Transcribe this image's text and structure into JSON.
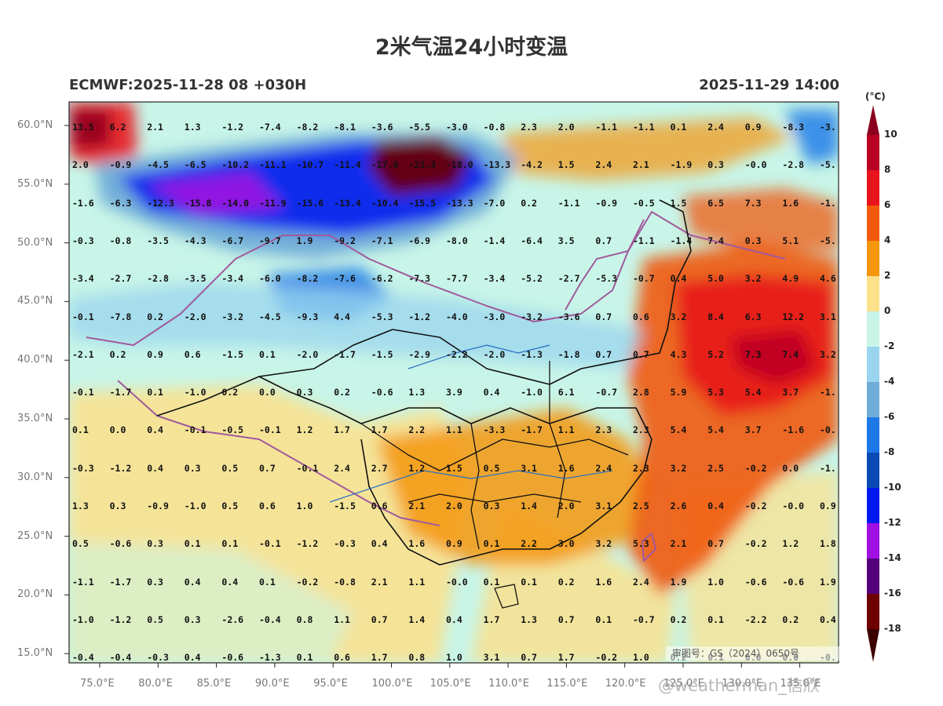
{
  "title": "2米气温24小时变温",
  "run_label": "ECMWF:2025-11-28 08 +030H",
  "valid_time": "2025-11-29 14:00",
  "colorbar": {
    "unit": "(°C)",
    "ticks": [
      "10",
      "8",
      "6",
      "4",
      "2",
      "0",
      "-2",
      "-4",
      "-6",
      "-8",
      "-10",
      "-12",
      "-14",
      "-16",
      "-18"
    ],
    "colors": [
      "#8b0020",
      "#b80024",
      "#e8141c",
      "#f05a0a",
      "#f5960f",
      "#fde08a",
      "#c8f5e8",
      "#9ad4ee",
      "#70acd8",
      "#1d78e8",
      "#0a4ab4",
      "#0018f0",
      "#a010e0",
      "#54007a",
      "#6e0000",
      "#3c0000"
    ]
  },
  "map": {
    "lat_labels": [
      "60.0°N",
      "55.0°N",
      "50.0°N",
      "45.0°N",
      "40.0°N",
      "35.0°N",
      "30.0°N",
      "25.0°N",
      "20.0°N",
      "15.0°N"
    ],
    "lon_labels": [
      "75.0°E",
      "80.0°E",
      "85.0°E",
      "90.0°E",
      "95.0°E",
      "100.0°E",
      "105.0°E",
      "110.0°E",
      "115.0°E",
      "120.0°E",
      "125.0°E",
      "130.0°E",
      "135.0°E"
    ],
    "grid_values": [
      [
        "13.5",
        "6.2",
        "2.1",
        "1.3",
        "-1.2",
        "-7.4",
        "-8.2",
        "-8.1",
        "-3.6",
        "-5.5",
        "-3.0",
        "-0.8",
        "2.3",
        "2.0",
        "-1.1",
        "-1.1",
        "0.1",
        "2.4",
        "0.9",
        "-8.3",
        "-3."
      ],
      [
        "2.0",
        "-0.9",
        "-4.5",
        "-6.5",
        "-10.2",
        "-11.1",
        "-10.7",
        "-11.4",
        "-17.8",
        "-23.3",
        "-18.0",
        "-13.3",
        "-4.2",
        "1.5",
        "2.4",
        "2.1",
        "-1.9",
        "0.3",
        "-0.0",
        "-2.8",
        "-5."
      ],
      [
        "-1.6",
        "-6.3",
        "-12.3",
        "-15.8",
        "-14.0",
        "-11.9",
        "-15.6",
        "-13.4",
        "-10.4",
        "-15.5",
        "-13.3",
        "-7.0",
        "0.2",
        "-1.1",
        "-0.9",
        "-0.5",
        "1.5",
        "6.5",
        "7.3",
        "1.6",
        "-1."
      ],
      [
        "-0.3",
        "-0.8",
        "-3.5",
        "-4.3",
        "-6.7",
        "-9.7",
        "1.9",
        "-9.2",
        "-7.1",
        "-6.9",
        "-8.0",
        "-1.4",
        "-6.4",
        "3.5",
        "0.7",
        "-1.1",
        "-1.4",
        "7.4",
        "0.3",
        "5.1",
        "-5."
      ],
      [
        "-3.4",
        "-2.7",
        "-2.8",
        "-3.5",
        "-3.4",
        "-6.0",
        "-8.2",
        "-7.6",
        "-6.2",
        "-7.3",
        "-7.7",
        "-3.4",
        "-5.2",
        "-2.7",
        "-5.3",
        "-0.7",
        "0.4",
        "5.0",
        "3.2",
        "4.9",
        "4.6"
      ],
      [
        "-0.1",
        "-7.8",
        "0.2",
        "-2.0",
        "-3.2",
        "-4.5",
        "-9.3",
        "4.4",
        "-5.3",
        "-1.2",
        "-4.0",
        "-3.0",
        "-3.2",
        "-3.6",
        "0.7",
        "0.6",
        "3.2",
        "8.4",
        "6.3",
        "12.2",
        "3.1"
      ],
      [
        "-2.1",
        "0.2",
        "0.9",
        "0.6",
        "-1.5",
        "0.1",
        "-2.0",
        "-1.7",
        "-1.5",
        "-2.9",
        "-2.2",
        "-2.0",
        "-1.3",
        "-1.8",
        "0.7",
        "0.7",
        "4.3",
        "5.2",
        "7.3",
        "7.4",
        "3.2"
      ],
      [
        "-0.1",
        "-1.7",
        "0.1",
        "-1.0",
        "0.2",
        "0.0",
        "0.3",
        "0.2",
        "-0.6",
        "1.3",
        "3.9",
        "0.4",
        "-1.0",
        "6.1",
        "-0.7",
        "2.8",
        "5.9",
        "5.3",
        "5.4",
        "3.7",
        "-1."
      ],
      [
        "0.1",
        "0.0",
        "0.4",
        "-0.1",
        "-0.5",
        "-0.1",
        "1.2",
        "1.7",
        "1.7",
        "2.2",
        "1.1",
        "-3.3",
        "-1.7",
        "1.1",
        "2.3",
        "2.3",
        "5.4",
        "5.4",
        "3.7",
        "-1.6",
        "-0."
      ],
      [
        "-0.3",
        "-1.2",
        "0.4",
        "0.3",
        "0.5",
        "0.7",
        "-0.1",
        "2.4",
        "2.7",
        "1.2",
        "1.5",
        "0.5",
        "3.1",
        "1.6",
        "2.4",
        "2.3",
        "3.2",
        "2.5",
        "-0.2",
        "0.0",
        "-1."
      ],
      [
        "1.3",
        "0.3",
        "-0.9",
        "-1.0",
        "0.5",
        "0.6",
        "1.0",
        "-1.5",
        "0.6",
        "2.1",
        "2.0",
        "0.3",
        "1.4",
        "2.0",
        "3.1",
        "2.5",
        "2.6",
        "0.4",
        "-0.2",
        "-0.0",
        "0.9"
      ],
      [
        "0.5",
        "-0.6",
        "0.3",
        "0.1",
        "0.1",
        "-0.1",
        "-1.2",
        "-0.3",
        "0.4",
        "1.6",
        "0.9",
        "0.1",
        "2.2",
        "3.0",
        "3.2",
        "5.3",
        "2.1",
        "0.7",
        "-0.2",
        "1.2",
        "1.8"
      ],
      [
        "-1.1",
        "-1.7",
        "0.3",
        "0.4",
        "0.4",
        "0.1",
        "-0.2",
        "-0.8",
        "2.1",
        "1.1",
        "-0.0",
        "0.1",
        "0.1",
        "0.2",
        "1.6",
        "2.4",
        "1.9",
        "1.0",
        "-0.6",
        "-0.6",
        "1.9"
      ],
      [
        "-1.0",
        "-1.2",
        "0.5",
        "0.3",
        "-2.6",
        "-0.4",
        "0.8",
        "1.1",
        "0.7",
        "1.4",
        "0.4",
        "1.7",
        "1.3",
        "0.7",
        "0.1",
        "-0.7",
        "0.2",
        "0.1",
        "-2.2",
        "0.2",
        "0.4"
      ],
      [
        "-0.4",
        "-0.4",
        "-0.3",
        "0.4",
        "-0.6",
        "-1.3",
        "0.1",
        "0.6",
        "1.7",
        "0.8",
        "1.0",
        "3.1",
        "0.7",
        "1.7",
        "-0.2",
        "1.0",
        "0.2",
        "0.1",
        "0.0",
        "0.0",
        "-0."
      ]
    ],
    "review_number": "审图号：GS（2024）0650号",
    "watermark": "@weatherman_信欣"
  }
}
